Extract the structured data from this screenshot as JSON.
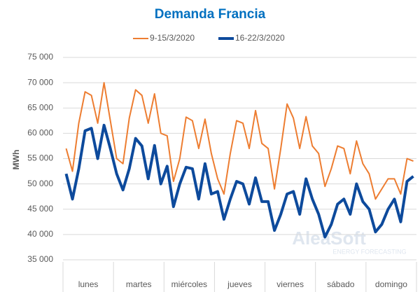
{
  "chart_data": {
    "type": "line",
    "title": "Demanda Francia",
    "ylabel": "MWh",
    "watermark": [
      "AleaSoft",
      "ENERGY FORECASTING"
    ],
    "categories": [
      null,
      null,
      null,
      null,
      "lunes",
      null,
      null,
      null,
      null,
      null,
      null,
      null,
      "martes",
      null,
      null,
      null,
      null,
      null,
      null,
      null,
      "miércoles",
      null,
      null,
      null,
      null,
      null,
      null,
      null,
      "jueves",
      null,
      null,
      null,
      null,
      null,
      null,
      null,
      "viernes",
      null,
      null,
      null,
      null,
      null,
      null,
      null,
      "sábado",
      null,
      null,
      null,
      null,
      null,
      null,
      null,
      "domingo",
      null,
      null,
      null
    ],
    "series": [
      {
        "name": "9-15/3/2020",
        "color": "#ed7d31",
        "width": 2,
        "values": [
          57000,
          52500,
          62000,
          68200,
          67500,
          62000,
          70000,
          62500,
          55000,
          54000,
          63000,
          68600,
          67500,
          62000,
          67800,
          60000,
          59500,
          50500,
          55000,
          63200,
          62500,
          57000,
          62800,
          56000,
          51000,
          48000,
          56000,
          62500,
          62000,
          57000,
          64500,
          58000,
          57000,
          49000,
          57000,
          65800,
          63000,
          57000,
          63300,
          57500,
          56000,
          49500,
          53000,
          57500,
          57000,
          52000,
          58500,
          54000,
          52000,
          47000,
          49000,
          51000,
          51000,
          48000,
          55000,
          54500
        ]
      },
      {
        "name": "16-22/3/2020",
        "color": "#0d4a9c",
        "width": 4,
        "values": [
          52000,
          47000,
          53000,
          60500,
          61000,
          55000,
          61600,
          57000,
          52000,
          48800,
          53000,
          59000,
          57500,
          51000,
          57600,
          50000,
          53500,
          45500,
          50000,
          53300,
          53000,
          47000,
          54000,
          48000,
          48500,
          43000,
          47000,
          50500,
          50000,
          46000,
          51200,
          46500,
          46500,
          40800,
          44000,
          48000,
          48500,
          44000,
          51000,
          47000,
          44000,
          39500,
          42000,
          46000,
          47000,
          44000,
          50000,
          46500,
          45000,
          40500,
          42000,
          45000,
          47000,
          42500,
          50500,
          51500
        ]
      }
    ],
    "ylim": [
      35000,
      75000
    ],
    "yticks": [
      {
        "value": 35000,
        "label": "35 000"
      },
      {
        "value": 40000,
        "label": "40 000"
      },
      {
        "value": 45000,
        "label": "45 000"
      },
      {
        "value": 50000,
        "label": "50 000"
      },
      {
        "value": 55000,
        "label": "55 000"
      },
      {
        "value": 60000,
        "label": "60 000"
      },
      {
        "value": 65000,
        "label": "65 000"
      },
      {
        "value": 70000,
        "label": "70 000"
      },
      {
        "value": 75000,
        "label": "75 000"
      }
    ],
    "grid": true,
    "legend": "top"
  }
}
